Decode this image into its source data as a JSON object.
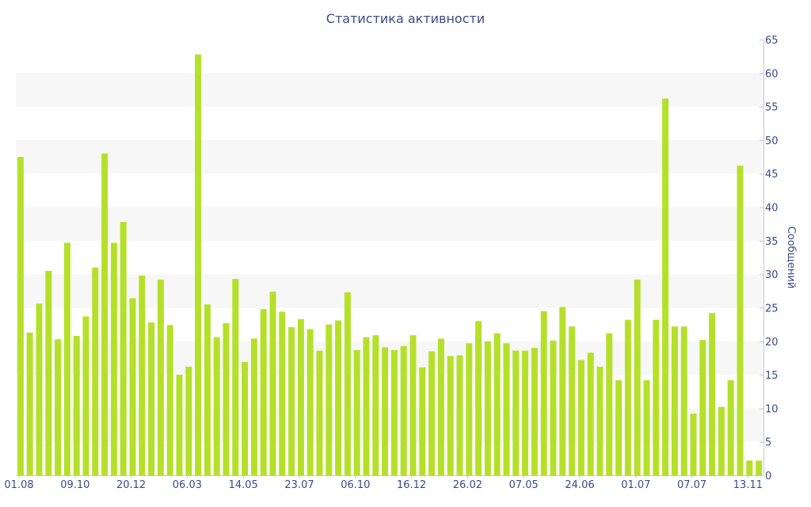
{
  "chart_data": {
    "type": "bar",
    "title": "Статистика активности",
    "ylabel": "Сообщений",
    "ylim": [
      0,
      65
    ],
    "yticks": [
      0,
      5,
      10,
      15,
      20,
      25,
      30,
      35,
      40,
      45,
      50,
      55,
      60,
      65
    ],
    "y_axis_side": "right",
    "grid": "alternating horizontal bands",
    "bar_color": "#b5e02a",
    "x_tick_labels": [
      {
        "index": 0,
        "label": "01.08"
      },
      {
        "index": 6,
        "label": "09.10"
      },
      {
        "index": 12,
        "label": "20.12"
      },
      {
        "index": 18,
        "label": "06.03"
      },
      {
        "index": 24,
        "label": "14.05"
      },
      {
        "index": 30,
        "label": "23.07"
      },
      {
        "index": 36,
        "label": "06.10"
      },
      {
        "index": 42,
        "label": "16.12"
      },
      {
        "index": 48,
        "label": "26.02"
      },
      {
        "index": 54,
        "label": "07.05"
      },
      {
        "index": 60,
        "label": "24.06"
      },
      {
        "index": 66,
        "label": "01.07"
      },
      {
        "index": 72,
        "label": "07.07"
      },
      {
        "index": 78,
        "label": "13.11"
      }
    ],
    "values": [
      47.5,
      21.3,
      25.6,
      30.5,
      20.3,
      34.7,
      20.8,
      23.7,
      31.0,
      48.0,
      34.7,
      37.8,
      26.4,
      29.8,
      22.8,
      29.2,
      22.4,
      15.0,
      16.2,
      62.8,
      25.5,
      20.6,
      22.7,
      29.3,
      16.9,
      20.4,
      24.8,
      27.4,
      24.4,
      22.1,
      23.3,
      21.8,
      18.6,
      22.5,
      23.1,
      27.3,
      18.7,
      20.6,
      20.9,
      19.1,
      18.7,
      19.3,
      20.9,
      16.1,
      18.5,
      20.4,
      17.8,
      17.9,
      19.7,
      23.0,
      20.0,
      21.2,
      19.7,
      18.6,
      18.6,
      19.0,
      24.5,
      20.1,
      25.1,
      22.2,
      17.2,
      18.3,
      16.2,
      21.2,
      14.2,
      23.2,
      29.2,
      14.2,
      23.2,
      56.2,
      22.2,
      22.2,
      9.2,
      20.2,
      24.2,
      10.2,
      14.2,
      46.2,
      2.2,
      2.2
    ]
  }
}
